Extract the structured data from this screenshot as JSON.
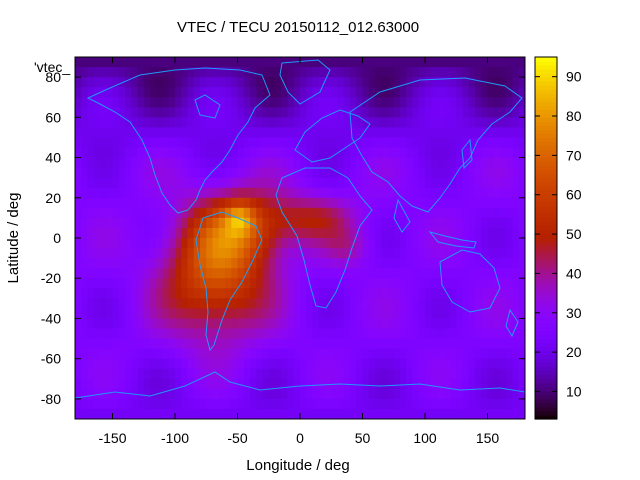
{
  "chart_data": {
    "type": "heatmap",
    "title": "VTEC / TECU 20150112_012.63000",
    "key_label": "'vtec_",
    "xlabel": "Longitude / deg",
    "ylabel": "Latitude / deg",
    "xlim": [
      -180,
      180
    ],
    "ylim": [
      -90,
      90
    ],
    "x_ticks": [
      -150,
      -100,
      -50,
      0,
      50,
      100,
      150
    ],
    "y_ticks": [
      -80,
      -60,
      -40,
      -20,
      0,
      20,
      40,
      60,
      80
    ],
    "color_range": [
      3,
      95
    ],
    "colorbar_ticks": [
      10,
      20,
      30,
      40,
      50,
      60,
      70,
      80,
      90
    ],
    "colormap": "gnuplot-rgbformulae-7-5-15",
    "grid": false,
    "features": {
      "background_level": 26,
      "polar_low_north": 8,
      "polar_low_south": 22,
      "anomaly_peak": {
        "lon": -48,
        "lat": 10,
        "value": 95
      },
      "anomaly_core": {
        "lon": -60,
        "lat": -12,
        "value": 66
      },
      "anomaly_extent_lon": [
        -130,
        60
      ],
      "anomaly_extent_lat": [
        -60,
        25
      ]
    }
  }
}
